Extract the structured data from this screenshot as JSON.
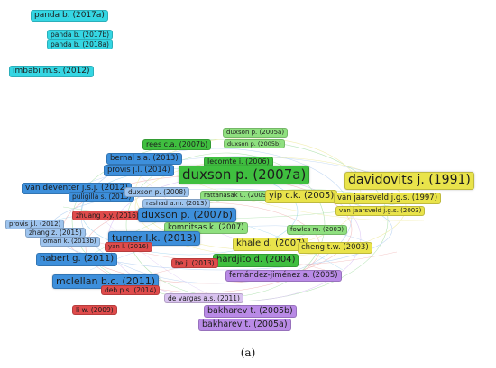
{
  "caption": "(a)",
  "colors": {
    "cyan": "#35d6e3",
    "yellow": "#e9e34b",
    "green": "#3fbf3f",
    "light_green": "#8fe07f",
    "blue": "#3d8fdb",
    "light_blue": "#9ec4ee",
    "red": "#df4b4b",
    "purple": "#b98ae6",
    "light_purple": "#d9c3f0"
  },
  "nodes": [
    {
      "label": "panda b. (2017a)",
      "color": "cyan"
    },
    {
      "label": "panda b. (2017b)",
      "color": "cyan"
    },
    {
      "label": "panda b. (2018a)",
      "color": "cyan"
    },
    {
      "label": "imbabi m.s. (2012)",
      "color": "cyan"
    },
    {
      "label": "duxson p. (2005a)",
      "color": "light_green"
    },
    {
      "label": "duxson p. (2005b)",
      "color": "light_green"
    },
    {
      "label": "rees c.a. (2007b)",
      "color": "green"
    },
    {
      "label": "lecomte i. (2006)",
      "color": "green"
    },
    {
      "label": "bernal s.a. (2013)",
      "color": "blue"
    },
    {
      "label": "provis j.l. (2014)",
      "color": "blue"
    },
    {
      "label": "duxson p. (2007a)",
      "color": "green"
    },
    {
      "label": "davidovits j. (1991)",
      "color": "yellow"
    },
    {
      "label": "van deventer j.s.j. (2012)",
      "color": "blue"
    },
    {
      "label": "puligilla s. (2013)",
      "color": "blue"
    },
    {
      "label": "duxson p. (2008)",
      "color": "light_blue"
    },
    {
      "label": "rattanasak u. (2009)",
      "color": "light_green"
    },
    {
      "label": "yip c.k. (2005)",
      "color": "yellow"
    },
    {
      "label": "van jaarsveld j.g.s. (1997)",
      "color": "yellow"
    },
    {
      "label": "rashad a.m. (2013)",
      "color": "light_blue"
    },
    {
      "label": "van jaarsveld j.g.s. (2003)",
      "color": "yellow"
    },
    {
      "label": "zhuang x.y. (2016)",
      "color": "red"
    },
    {
      "label": "duxson p. (2007b)",
      "color": "blue"
    },
    {
      "label": "komnitsas k. (2007)",
      "color": "light_green"
    },
    {
      "label": "provis j.l. (2012)",
      "color": "light_blue"
    },
    {
      "label": "zhang z. (2015)",
      "color": "light_blue"
    },
    {
      "label": "fowles m. (2003)",
      "color": "light_green"
    },
    {
      "label": "turner l.k. (2013)",
      "color": "blue"
    },
    {
      "label": "omari k. (2013b)",
      "color": "light_blue"
    },
    {
      "label": "yan l. (2016)",
      "color": "red"
    },
    {
      "label": "khale d. (2007)",
      "color": "yellow"
    },
    {
      "label": "cheng t.w. (2003)",
      "color": "yellow"
    },
    {
      "label": "habert g. (2011)",
      "color": "blue"
    },
    {
      "label": "hardjito d. (2004)",
      "color": "green"
    },
    {
      "label": "he j. (2013)",
      "color": "red"
    },
    {
      "label": "fernández-jiménez a. (2005)",
      "color": "purple"
    },
    {
      "label": "mclellan b.c. (2011)",
      "color": "blue"
    },
    {
      "label": "deb p.s. (2014)",
      "color": "red"
    },
    {
      "label": "de vargas a.s. (2011)",
      "color": "light_purple"
    },
    {
      "label": "li w. (2009)",
      "color": "red"
    },
    {
      "label": "bakharev t. (2005b)",
      "color": "purple"
    },
    {
      "label": "bakharev t. (2005a)",
      "color": "purple"
    }
  ]
}
